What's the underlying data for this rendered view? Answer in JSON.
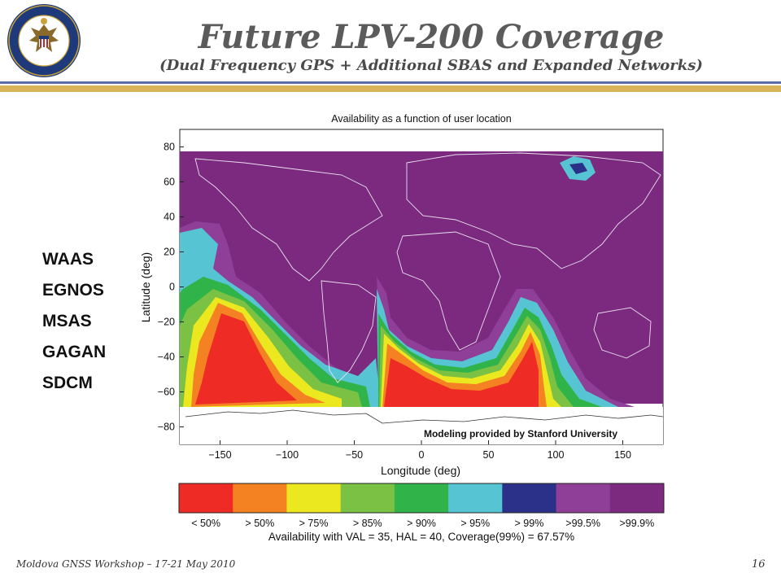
{
  "header": {
    "title": "Future LPV-200 Coverage",
    "subtitle": "(Dual Frequency GPS + Additional SBAS and Expanded Networks)"
  },
  "seal": {
    "text_top": "DEPARTMENT OF STATE",
    "text_bottom": "UNITED STATES OF AMERICA",
    "colors": {
      "ring": "#1f3a7a",
      "gold": "#c8a23a"
    }
  },
  "systems": [
    "WAAS",
    "EGNOS",
    "MSAS",
    "GAGAN",
    "SDCM"
  ],
  "chart_data": {
    "type": "heatmap",
    "title": "Availability as a function of user location",
    "xlabel": "Longitude (deg)",
    "ylabel": "Latitude (deg)",
    "xlim": [
      -180,
      180
    ],
    "ylim": [
      -90,
      90
    ],
    "xticks": [
      -150,
      -100,
      -50,
      0,
      50,
      100,
      150
    ],
    "yticks": [
      80,
      60,
      40,
      20,
      0,
      -20,
      -40,
      -60,
      -80
    ],
    "annotation": "Modeling provided by Stanford University",
    "colorbar": {
      "labels": [
        "< 50%",
        "> 50%",
        "> 75%",
        "> 85%",
        "> 90%",
        "> 95%",
        "> 99%",
        ">99.5%",
        ">99.9%"
      ],
      "colors": [
        "#ee2b24",
        "#f58222",
        "#ece820",
        "#7bc143",
        "#30b44a",
        "#56c4d2",
        "#2b3189",
        "#8f3f97",
        "#7c2a7f"
      ]
    },
    "summary": "Availability with VAL = 35,  HAL = 40, Coverage(99%) = 67.57%"
  },
  "footer": {
    "left": "Moldova GNSS Workshop – 17-21 May 2010",
    "page": "16"
  }
}
